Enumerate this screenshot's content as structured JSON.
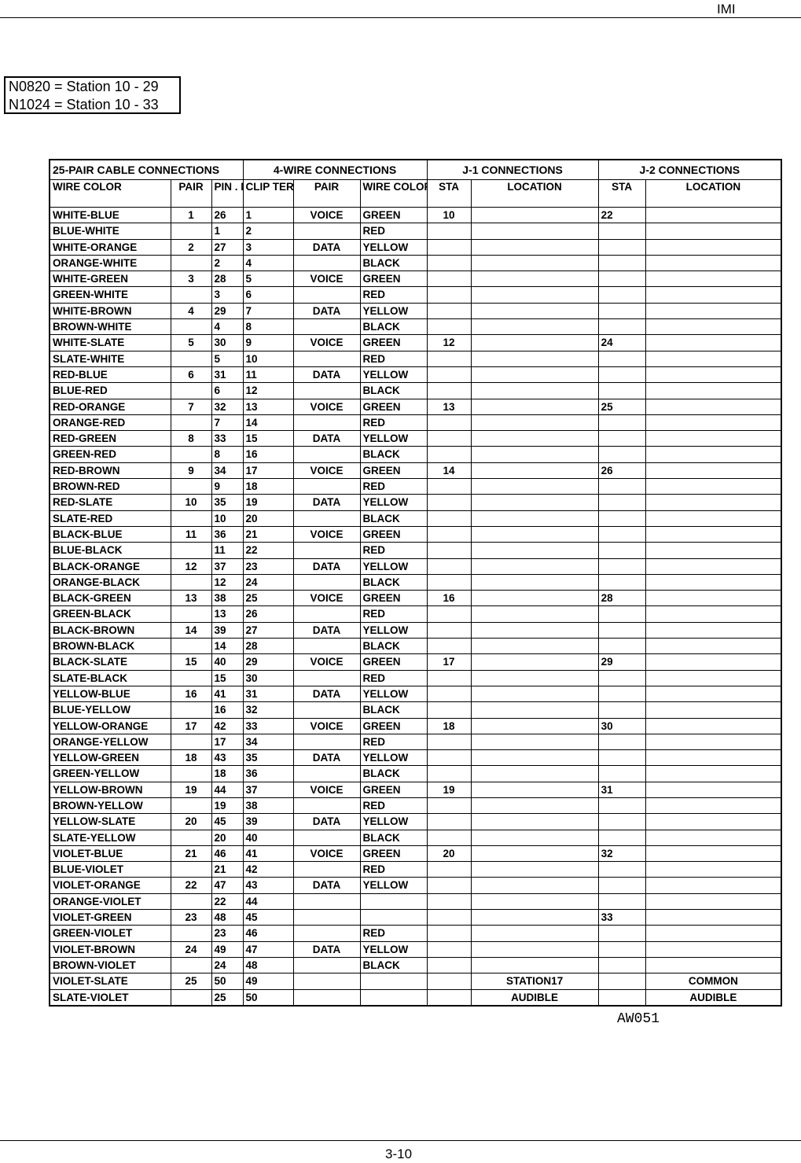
{
  "header": {
    "right_text": "IMI"
  },
  "note": {
    "lines": [
      "N0820 = Station 10 - 29",
      "N1024 = Station 10 - 33"
    ]
  },
  "table": {
    "groups": [
      "25-PAIR CABLE CONNECTIONS",
      "4-WIRE  CONNECTIONS",
      "J-1  CONNECTIONS",
      "J-2  CONNECTIONS"
    ],
    "columns": [
      "WIRE COLOR",
      "PAIR",
      "PIN . NO.",
      "CLIP TERM.",
      "PAIR",
      "WIRE COLOR",
      "STA",
      "LOCATION",
      "STA",
      "LOCATION"
    ],
    "rows": [
      [
        "WHITE-BLUE",
        "1",
        "26",
        "1",
        "VOICE",
        "GREEN",
        "10",
        "",
        "22",
        ""
      ],
      [
        "BLUE-WHITE",
        "",
        "1",
        "2",
        "",
        "RED",
        "",
        "",
        "",
        ""
      ],
      [
        "WHITE-ORANGE",
        "2",
        "27",
        "3",
        "DATA",
        "YELLOW",
        "",
        "",
        "",
        ""
      ],
      [
        "ORANGE-WHITE",
        "",
        "2",
        "4",
        "",
        "BLACK",
        "",
        "",
        "",
        ""
      ],
      [
        "WHITE-GREEN",
        "3",
        "28",
        "5",
        "VOICE",
        "GREEN",
        "",
        "",
        "",
        ""
      ],
      [
        "GREEN-WHITE",
        "",
        "3",
        "6",
        "",
        "RED",
        "",
        "",
        "",
        ""
      ],
      [
        "WHITE-BROWN",
        "4",
        "29",
        "7",
        "DATA",
        "YELLOW",
        "",
        "",
        "",
        ""
      ],
      [
        "BROWN-WHITE",
        "",
        "4",
        "8",
        "",
        "BLACK",
        "",
        "",
        "",
        ""
      ],
      [
        "WHITE-SLATE",
        "5",
        "30",
        "9",
        "VOICE",
        "GREEN",
        "12",
        "",
        "24",
        ""
      ],
      [
        "SLATE-WHITE",
        "",
        "5",
        "10",
        "",
        "RED",
        "",
        "",
        "",
        ""
      ],
      [
        "RED-BLUE",
        "6",
        "31",
        "11",
        "DATA",
        "YELLOW",
        "",
        "",
        "",
        ""
      ],
      [
        "BLUE-RED",
        "",
        "6",
        "12",
        "",
        "BLACK",
        "",
        "",
        "",
        ""
      ],
      [
        "RED-ORANGE",
        "7",
        "32",
        "13",
        "VOICE",
        "GREEN",
        "13",
        "",
        "25",
        ""
      ],
      [
        "ORANGE-RED",
        "",
        "7",
        "14",
        "",
        "RED",
        "",
        "",
        "",
        ""
      ],
      [
        "RED-GREEN",
        "8",
        "33",
        "15",
        "DATA",
        "YELLOW",
        "",
        "",
        "",
        ""
      ],
      [
        "GREEN-RED",
        "",
        "8",
        "16",
        "",
        "BLACK",
        "",
        "",
        "",
        ""
      ],
      [
        "RED-BROWN",
        "9",
        "34",
        "17",
        "VOICE",
        "GREEN",
        "14",
        "",
        "26",
        ""
      ],
      [
        "BROWN-RED",
        "",
        "9",
        "18",
        "",
        "RED",
        "",
        "",
        "",
        ""
      ],
      [
        "RED-SLATE",
        "10",
        "35",
        "19",
        "DATA",
        "YELLOW",
        "",
        "",
        "",
        ""
      ],
      [
        "SLATE-RED",
        "",
        "10",
        "20",
        "",
        "BLACK",
        "",
        "",
        "",
        ""
      ],
      [
        "BLACK-BLUE",
        "11",
        "36",
        "21",
        "VOICE",
        "GREEN",
        "",
        "",
        "",
        ""
      ],
      [
        "BLUE-BLACK",
        "",
        "11",
        "22",
        "",
        "RED",
        "",
        "",
        "",
        ""
      ],
      [
        "BLACK-ORANGE",
        "12",
        "37",
        "23",
        "DATA",
        "YELLOW",
        "",
        "",
        "",
        ""
      ],
      [
        "ORANGE-BLACK",
        "",
        "12",
        "24",
        "",
        "BLACK",
        "",
        "",
        "",
        ""
      ],
      [
        "BLACK-GREEN",
        "13",
        "38",
        "25",
        "VOICE",
        "GREEN",
        "16",
        "",
        "28",
        ""
      ],
      [
        "GREEN-BLACK",
        "",
        "13",
        "26",
        "",
        "RED",
        "",
        "",
        "",
        ""
      ],
      [
        "BLACK-BROWN",
        "14",
        "39",
        "27",
        "DATA",
        "YELLOW",
        "",
        "",
        "",
        ""
      ],
      [
        "BROWN-BLACK",
        "",
        "14",
        "28",
        "",
        "BLACK",
        "",
        "",
        "",
        ""
      ],
      [
        "BLACK-SLATE",
        "15",
        "40",
        "29",
        "VOICE",
        "GREEN",
        "17",
        "",
        "29",
        ""
      ],
      [
        "SLATE-BLACK",
        "",
        "15",
        "30",
        "",
        "RED",
        "",
        "",
        "",
        ""
      ],
      [
        "YELLOW-BLUE",
        "16",
        "41",
        "31",
        "DATA",
        "YELLOW",
        "",
        "",
        "",
        ""
      ],
      [
        "BLUE-YELLOW",
        "",
        "16",
        "32",
        "",
        "BLACK",
        "",
        "",
        "",
        ""
      ],
      [
        "YELLOW-ORANGE",
        "17",
        "42",
        "33",
        "VOICE",
        "GREEN",
        "18",
        "",
        "30",
        ""
      ],
      [
        "ORANGE-YELLOW",
        "",
        "17",
        "34",
        "",
        "RED",
        "",
        "",
        "",
        ""
      ],
      [
        "YELLOW-GREEN",
        "18",
        "43",
        "35",
        "DATA",
        "YELLOW",
        "",
        "",
        "",
        ""
      ],
      [
        "GREEN-YELLOW",
        "",
        "18",
        "36",
        "",
        "BLACK",
        "",
        "",
        "",
        ""
      ],
      [
        "YELLOW-BROWN",
        "19",
        "44",
        "37",
        "VOICE",
        "GREEN",
        "19",
        "",
        "31",
        ""
      ],
      [
        "BROWN-YELLOW",
        "",
        "19",
        "38",
        "",
        "RED",
        "",
        "",
        "",
        ""
      ],
      [
        "YELLOW-SLATE",
        "20",
        "45",
        "39",
        "DATA",
        "YELLOW",
        "",
        "",
        "",
        ""
      ],
      [
        "SLATE-YELLOW",
        "",
        "20",
        "40",
        "",
        "BLACK",
        "",
        "",
        "",
        ""
      ],
      [
        "VIOLET-BLUE",
        "21",
        "46",
        "41",
        "VOICE",
        "GREEN",
        "20",
        "",
        "32",
        ""
      ],
      [
        "BLUE-VIOLET",
        "",
        "21",
        "42",
        "",
        "RED",
        "",
        "",
        "",
        ""
      ],
      [
        "VIOLET-ORANGE",
        "22",
        "47",
        "43",
        "DATA",
        "YELLOW",
        "",
        "",
        "",
        ""
      ],
      [
        "ORANGE-VIOLET",
        "",
        "22",
        "44",
        "",
        "",
        "",
        "",
        "",
        ""
      ],
      [
        "VIOLET-GREEN",
        "23",
        "48",
        "45",
        "",
        "",
        "",
        "",
        "33",
        ""
      ],
      [
        "GREEN-VIOLET",
        "",
        "23",
        "46",
        "",
        "RED",
        "",
        "",
        "",
        ""
      ],
      [
        "VIOLET-BROWN",
        "24",
        "49",
        "47",
        "DATA",
        "YELLOW",
        "",
        "",
        "",
        ""
      ],
      [
        "BROWN-VIOLET",
        "",
        "24",
        "48",
        "",
        "BLACK",
        "",
        "",
        "",
        ""
      ],
      [
        "VIOLET-SLATE",
        "25",
        "50",
        "49",
        "",
        "",
        "",
        "STATION17",
        "",
        "COMMON"
      ],
      [
        "SLATE-VIOLET",
        "",
        "25",
        "50",
        "",
        "",
        "",
        "AUDIBLE",
        "",
        "AUDIBLE"
      ]
    ]
  },
  "figure_id": "AW051",
  "footer": {
    "page_number": "3-10"
  }
}
